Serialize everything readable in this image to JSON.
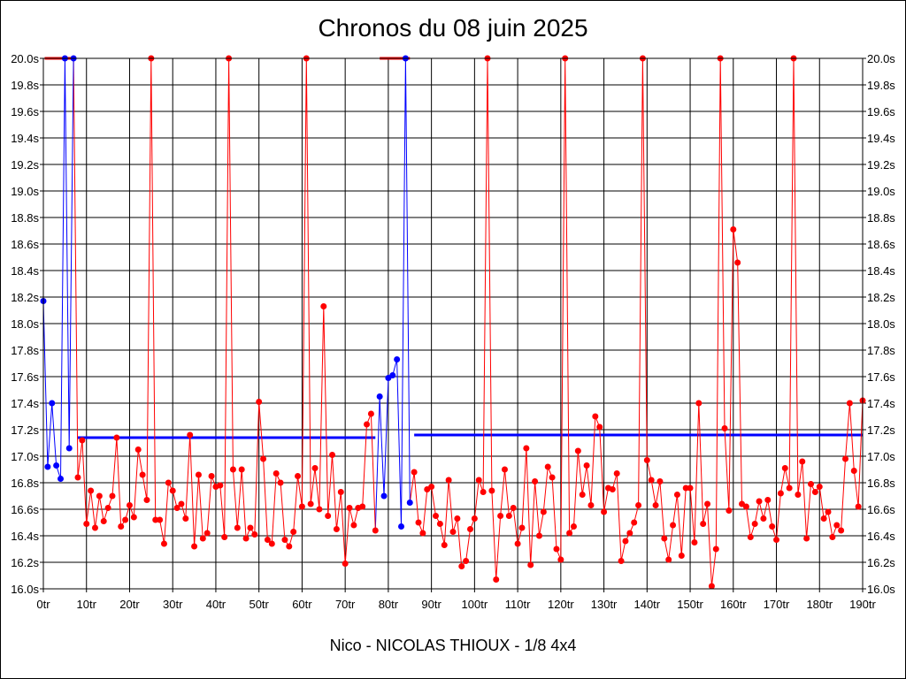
{
  "chart_data": {
    "type": "line",
    "title": "Chronos du 08 juin 2025",
    "subtitle": "Nico - NICOLAS THIOUX - 1/8 4x4",
    "y_unit_suffix": "s",
    "x_unit_suffix": "tr",
    "ylim": [
      16.0,
      20.0
    ],
    "y_ticks": [
      16.0,
      16.2,
      16.4,
      16.6,
      16.8,
      17.0,
      17.2,
      17.4,
      17.6,
      17.8,
      18.0,
      18.2,
      18.4,
      18.6,
      18.8,
      19.0,
      19.2,
      19.4,
      19.6,
      19.8,
      20.0
    ],
    "xlim": [
      0,
      190
    ],
    "x_ticks": [
      0,
      10,
      20,
      30,
      40,
      50,
      60,
      70,
      80,
      90,
      100,
      110,
      120,
      130,
      140,
      150,
      160,
      170,
      180,
      190
    ],
    "grid": true,
    "series": [
      {
        "name": "run1-blue",
        "color": "#0000ff",
        "points": [
          [
            0,
            18.17
          ],
          [
            1,
            16.92
          ],
          [
            2,
            17.4
          ],
          [
            3,
            16.93
          ],
          [
            4,
            16.83
          ],
          [
            5,
            20.0
          ],
          [
            6,
            17.06
          ],
          [
            7,
            20.0
          ]
        ]
      },
      {
        "name": "run1-red",
        "color": "#ff0000",
        "points": [
          [
            8,
            16.84
          ],
          [
            9,
            17.12
          ],
          [
            10,
            16.49
          ],
          [
            11,
            16.74
          ],
          [
            12,
            16.46
          ],
          [
            13,
            16.7
          ],
          [
            14,
            16.51
          ],
          [
            15,
            16.61
          ],
          [
            16,
            16.7
          ],
          [
            17,
            17.14
          ],
          [
            18,
            16.47
          ],
          [
            19,
            16.52
          ],
          [
            20,
            16.63
          ],
          [
            21,
            16.54
          ],
          [
            22,
            17.05
          ],
          [
            23,
            16.86
          ],
          [
            24,
            16.67
          ],
          [
            25,
            20.0
          ],
          [
            26,
            16.52
          ],
          [
            27,
            16.52
          ],
          [
            28,
            16.34
          ],
          [
            29,
            16.8
          ],
          [
            30,
            16.74
          ],
          [
            31,
            16.61
          ],
          [
            32,
            16.64
          ],
          [
            33,
            16.53
          ],
          [
            34,
            17.16
          ],
          [
            35,
            16.32
          ],
          [
            36,
            16.86
          ],
          [
            37,
            16.38
          ],
          [
            38,
            16.42
          ],
          [
            39,
            16.85
          ],
          [
            40,
            16.77
          ],
          [
            41,
            16.78
          ],
          [
            42,
            16.39
          ],
          [
            43,
            20.0
          ],
          [
            44,
            16.9
          ],
          [
            45,
            16.46
          ],
          [
            46,
            16.9
          ],
          [
            47,
            16.38
          ],
          [
            48,
            16.46
          ],
          [
            49,
            16.41
          ],
          [
            50,
            17.41
          ],
          [
            51,
            16.98
          ],
          [
            52,
            16.37
          ],
          [
            53,
            16.34
          ],
          [
            54,
            16.87
          ],
          [
            55,
            16.8
          ],
          [
            56,
            16.37
          ],
          [
            57,
            16.32
          ],
          [
            58,
            16.43
          ],
          [
            59,
            16.85
          ],
          [
            60,
            16.62
          ],
          [
            61,
            20.0
          ],
          [
            62,
            16.64
          ],
          [
            63,
            16.91
          ],
          [
            64,
            16.6
          ],
          [
            65,
            18.13
          ],
          [
            66,
            16.55
          ],
          [
            67,
            17.01
          ],
          [
            68,
            16.45
          ],
          [
            69,
            16.73
          ],
          [
            70,
            16.19
          ],
          [
            71,
            16.61
          ],
          [
            72,
            16.48
          ],
          [
            73,
            16.61
          ],
          [
            74,
            16.62
          ],
          [
            75,
            17.24
          ],
          [
            76,
            17.32
          ],
          [
            77,
            16.44
          ]
        ]
      },
      {
        "name": "run2-blue",
        "color": "#0000ff",
        "points": [
          [
            78,
            17.45
          ],
          [
            79,
            16.7
          ],
          [
            80,
            17.59
          ],
          [
            81,
            17.61
          ],
          [
            82,
            17.73
          ],
          [
            83,
            16.47
          ],
          [
            84,
            20.0
          ],
          [
            85,
            16.65
          ]
        ]
      },
      {
        "name": "run2-red",
        "color": "#ff0000",
        "points": [
          [
            86,
            16.88
          ],
          [
            87,
            16.5
          ],
          [
            88,
            16.42
          ],
          [
            89,
            16.75
          ],
          [
            90,
            16.77
          ],
          [
            91,
            16.55
          ],
          [
            92,
            16.49
          ],
          [
            93,
            16.33
          ],
          [
            94,
            16.82
          ],
          [
            95,
            16.43
          ],
          [
            96,
            16.53
          ],
          [
            97,
            16.17
          ],
          [
            98,
            16.21
          ],
          [
            99,
            16.45
          ],
          [
            100,
            16.53
          ],
          [
            101,
            16.82
          ],
          [
            102,
            16.73
          ],
          [
            103,
            20.0
          ],
          [
            104,
            16.74
          ],
          [
            105,
            16.07
          ],
          [
            106,
            16.55
          ],
          [
            107,
            16.9
          ],
          [
            108,
            16.55
          ],
          [
            109,
            16.61
          ],
          [
            110,
            16.34
          ],
          [
            111,
            16.46
          ],
          [
            112,
            17.06
          ],
          [
            113,
            16.18
          ],
          [
            114,
            16.81
          ],
          [
            115,
            16.4
          ],
          [
            116,
            16.58
          ],
          [
            117,
            16.92
          ],
          [
            118,
            16.84
          ],
          [
            119,
            16.3
          ],
          [
            120,
            16.22
          ],
          [
            121,
            20.0
          ],
          [
            122,
            16.42
          ],
          [
            123,
            16.47
          ],
          [
            124,
            17.04
          ],
          [
            125,
            16.71
          ],
          [
            126,
            16.93
          ],
          [
            127,
            16.63
          ],
          [
            128,
            17.3
          ],
          [
            129,
            17.22
          ],
          [
            130,
            16.58
          ],
          [
            131,
            16.76
          ],
          [
            132,
            16.75
          ],
          [
            133,
            16.87
          ],
          [
            134,
            16.21
          ],
          [
            135,
            16.36
          ],
          [
            136,
            16.42
          ],
          [
            137,
            16.5
          ],
          [
            138,
            16.63
          ],
          [
            139,
            20.0
          ],
          [
            140,
            16.97
          ],
          [
            141,
            16.82
          ],
          [
            142,
            16.63
          ],
          [
            143,
            16.81
          ],
          [
            144,
            16.38
          ],
          [
            145,
            16.22
          ],
          [
            146,
            16.48
          ],
          [
            147,
            16.71
          ],
          [
            148,
            16.25
          ],
          [
            149,
            16.76
          ],
          [
            150,
            16.76
          ],
          [
            151,
            16.35
          ],
          [
            152,
            17.4
          ],
          [
            153,
            16.49
          ],
          [
            154,
            16.64
          ],
          [
            155,
            16.02
          ],
          [
            156,
            16.3
          ],
          [
            157,
            20.0
          ],
          [
            158,
            17.21
          ],
          [
            159,
            16.59
          ],
          [
            160,
            18.71
          ],
          [
            161,
            18.46
          ],
          [
            162,
            16.64
          ],
          [
            163,
            16.62
          ],
          [
            164,
            16.39
          ],
          [
            165,
            16.49
          ],
          [
            166,
            16.66
          ],
          [
            167,
            16.53
          ],
          [
            168,
            16.67
          ],
          [
            169,
            16.47
          ],
          [
            170,
            16.37
          ],
          [
            171,
            16.72
          ],
          [
            172,
            16.91
          ],
          [
            173,
            16.76
          ],
          [
            174,
            20.0
          ],
          [
            175,
            16.71
          ],
          [
            176,
            16.96
          ],
          [
            177,
            16.38
          ],
          [
            178,
            16.79
          ],
          [
            179,
            16.73
          ],
          [
            180,
            16.77
          ],
          [
            181,
            16.53
          ],
          [
            182,
            16.58
          ],
          [
            183,
            16.39
          ],
          [
            184,
            16.48
          ],
          [
            185,
            16.44
          ],
          [
            186,
            16.98
          ],
          [
            187,
            17.4
          ],
          [
            188,
            16.89
          ],
          [
            189,
            16.62
          ],
          [
            190,
            17.42
          ]
        ]
      }
    ],
    "average_lines": [
      {
        "name": "average-run1",
        "color": "#0000ff",
        "x_start": 8,
        "x_end": 77,
        "y": 17.14
      },
      {
        "name": "average-run2",
        "color": "#0000ff",
        "x_start": 86,
        "x_end": 190,
        "y": 17.16
      }
    ],
    "top_clip_lines": [
      {
        "name": "top-clip-run1",
        "color": "#ff0000",
        "x_start": 0.3,
        "x_end": 7.5
      },
      {
        "name": "top-clip-run2",
        "color": "#ff0000",
        "x_start": 78,
        "x_end": 85
      }
    ]
  }
}
